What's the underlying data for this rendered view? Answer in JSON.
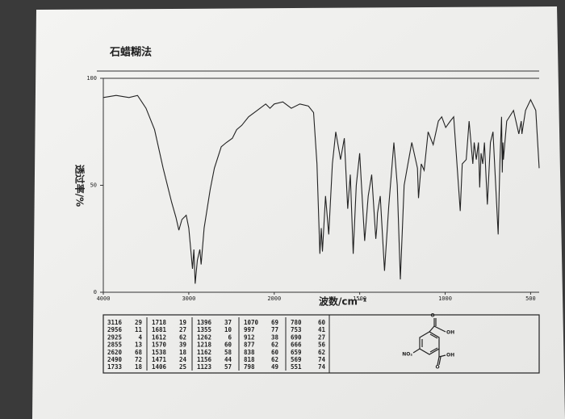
{
  "chart_data": {
    "type": "line",
    "title": "石蜡糊法",
    "y_label": "透过率/%",
    "x_label": "波数/cm⁻¹",
    "x": [
      4000,
      3850,
      3700,
      3600,
      3500,
      3400,
      3300,
      3200,
      3150,
      3116,
      3080,
      3030,
      3000,
      2956,
      2940,
      2925,
      2900,
      2870,
      2855,
      2820,
      2750,
      2700,
      2620,
      2560,
      2490,
      2440,
      2380,
      2300,
      2200,
      2100,
      2050,
      2000,
      1950,
      1900,
      1850,
      1800,
      1770,
      1750,
      1733,
      1725,
      1718,
      1700,
      1681,
      1660,
      1640,
      1612,
      1590,
      1570,
      1555,
      1538,
      1520,
      1500,
      1471,
      1450,
      1430,
      1406,
      1400,
      1396,
      1380,
      1355,
      1330,
      1300,
      1280,
      1262,
      1240,
      1218,
      1195,
      1162,
      1156,
      1140,
      1123,
      1100,
      1070,
      1040,
      1020,
      997,
      970,
      950,
      912,
      900,
      877,
      860,
      838,
      830,
      818,
      805,
      798,
      790,
      780,
      770,
      753,
      735,
      720,
      690,
      680,
      670,
      666,
      662,
      659,
      640,
      600,
      569,
      555,
      551,
      530,
      500,
      470,
      450
    ],
    "values": [
      91,
      92,
      91,
      92,
      86,
      76,
      58,
      42,
      35,
      29,
      34,
      36,
      30,
      11,
      20,
      4,
      15,
      20,
      13,
      30,
      48,
      58,
      68,
      70,
      72,
      76,
      78,
      82,
      85,
      88,
      86,
      88,
      89,
      86,
      88,
      87,
      84,
      60,
      18,
      30,
      19,
      45,
      27,
      60,
      75,
      62,
      72,
      39,
      55,
      18,
      50,
      65,
      24,
      45,
      55,
      25,
      30,
      37,
      45,
      10,
      40,
      70,
      50,
      6,
      50,
      60,
      70,
      58,
      44,
      60,
      57,
      75,
      69,
      80,
      82,
      77,
      80,
      82,
      38,
      60,
      62,
      80,
      60,
      70,
      62,
      70,
      49,
      65,
      60,
      70,
      41,
      70,
      75,
      27,
      60,
      82,
      56,
      70,
      62,
      80,
      85,
      74,
      80,
      74,
      85,
      90,
      85,
      58
    ],
    "color": "#222222",
    "xlim": [
      4000,
      450
    ],
    "xticks": [
      4000,
      3000,
      2000,
      1500,
      1000,
      500
    ],
    "ylim": [
      0,
      100
    ],
    "yticks": [
      0,
      50,
      100
    ],
    "peak_table": [
      [
        [
          3116,
          29
        ],
        [
          2956,
          11
        ],
        [
          2925,
          4
        ],
        [
          2855,
          13
        ],
        [
          2620,
          68
        ],
        [
          2490,
          72
        ],
        [
          1733,
          18
        ]
      ],
      [
        [
          1718,
          19
        ],
        [
          1681,
          27
        ],
        [
          1612,
          62
        ],
        [
          1570,
          39
        ],
        [
          1538,
          18
        ],
        [
          1471,
          24
        ],
        [
          1406,
          25
        ]
      ],
      [
        [
          1396,
          37
        ],
        [
          1355,
          10
        ],
        [
          1262,
          6
        ],
        [
          1218,
          60
        ],
        [
          1162,
          58
        ],
        [
          1156,
          44
        ],
        [
          1123,
          57
        ]
      ],
      [
        [
          1070,
          69
        ],
        [
          997,
          77
        ],
        [
          912,
          38
        ],
        [
          877,
          62
        ],
        [
          838,
          60
        ],
        [
          818,
          62
        ],
        [
          798,
          49
        ]
      ],
      [
        [
          780,
          60
        ],
        [
          753,
          41
        ],
        [
          690,
          27
        ],
        [
          666,
          56
        ],
        [
          659,
          62
        ],
        [
          569,
          74
        ],
        [
          551,
          74
        ]
      ]
    ],
    "structure_labels": [
      "O",
      "OH",
      "O",
      "OH",
      "NO₂"
    ]
  }
}
